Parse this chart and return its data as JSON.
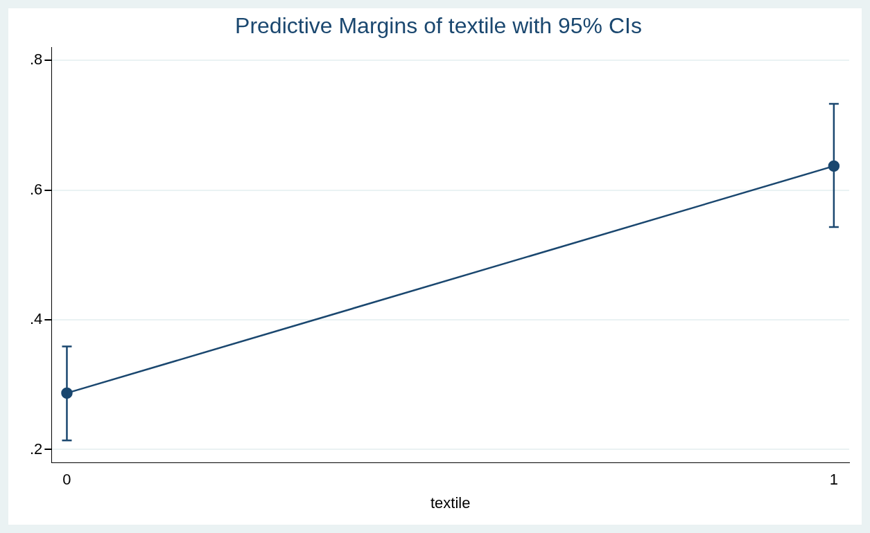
{
  "chart_data": {
    "type": "line",
    "title": "Predictive Margins of textile with 95% CIs",
    "xlabel": "textile",
    "x": [
      0,
      1
    ],
    "series": [
      {
        "color": "#1a476f",
        "values": [
          0.287,
          0.637
        ],
        "errors": [
          [
            0.214,
            0.359
          ],
          [
            0.543,
            0.733
          ]
        ]
      }
    ],
    "xlim": [
      -0.02,
      1.02
    ],
    "xticks": [
      0,
      1
    ],
    "ylim": [
      0.18,
      0.82
    ],
    "yticks": [
      {
        "value": 0.2,
        "label": ".2"
      },
      {
        "value": 0.4,
        "label": ".4"
      },
      {
        "value": 0.6,
        "label": ".6"
      },
      {
        "value": 0.8,
        "label": ".8"
      }
    ],
    "grid": "y",
    "marker": "circle",
    "line_style": "solid",
    "legend": false
  }
}
